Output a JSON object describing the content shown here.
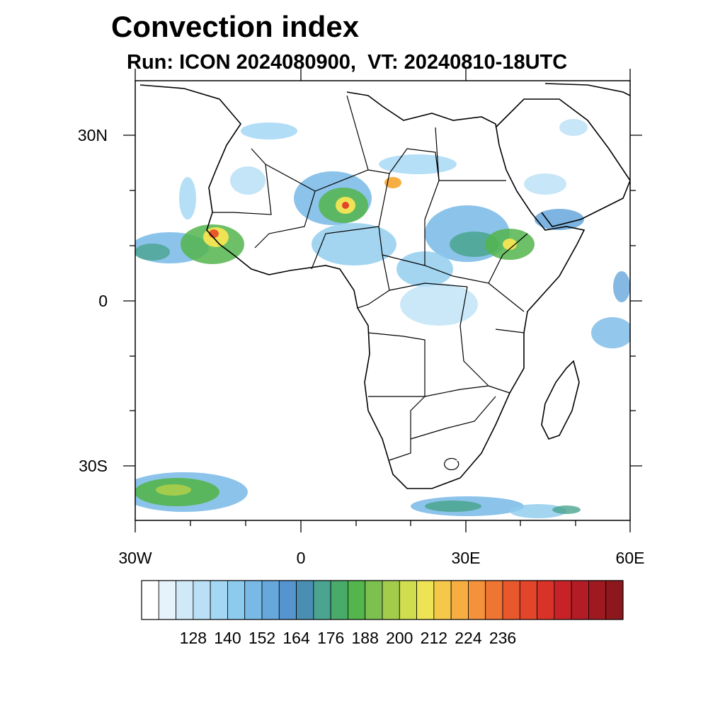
{
  "title": "Convection index",
  "subtitle": "Run: ICON 2024080900,  VT: 20240810-18UTC",
  "map": {
    "region": "Africa",
    "lon_range": [
      -30,
      60
    ],
    "lat_range": [
      -40,
      40
    ],
    "lat_ticks": [
      {
        "value": 30,
        "label": "30N"
      },
      {
        "value": 0,
        "label": "0"
      },
      {
        "value": -30,
        "label": "30S"
      }
    ],
    "lon_ticks": [
      {
        "value": -30,
        "label": "30W"
      },
      {
        "value": 0,
        "label": "0"
      },
      {
        "value": 30,
        "label": "30E"
      },
      {
        "value": 60,
        "label": "60E"
      }
    ]
  },
  "colorbar": {
    "colors": [
      "#ffffff",
      "#e6f3fb",
      "#cfe9f8",
      "#b9e0f6",
      "#a3d7f4",
      "#8ccbee",
      "#78b9e6",
      "#66a7dc",
      "#5594cf",
      "#4a8fb2",
      "#4aa48f",
      "#49ab6a",
      "#53b54c",
      "#7cc04f",
      "#a4cc4c",
      "#cfdd4f",
      "#eee354",
      "#f6c849",
      "#f6ae43",
      "#f3923a",
      "#ef7533",
      "#e9582d",
      "#e2452a",
      "#d93229",
      "#c72228",
      "#b31b25",
      "#9e1a20",
      "#8c171d"
    ],
    "labels": [
      "128",
      "140",
      "152",
      "164",
      "176",
      "188",
      "200",
      "212",
      "224",
      "236"
    ]
  }
}
